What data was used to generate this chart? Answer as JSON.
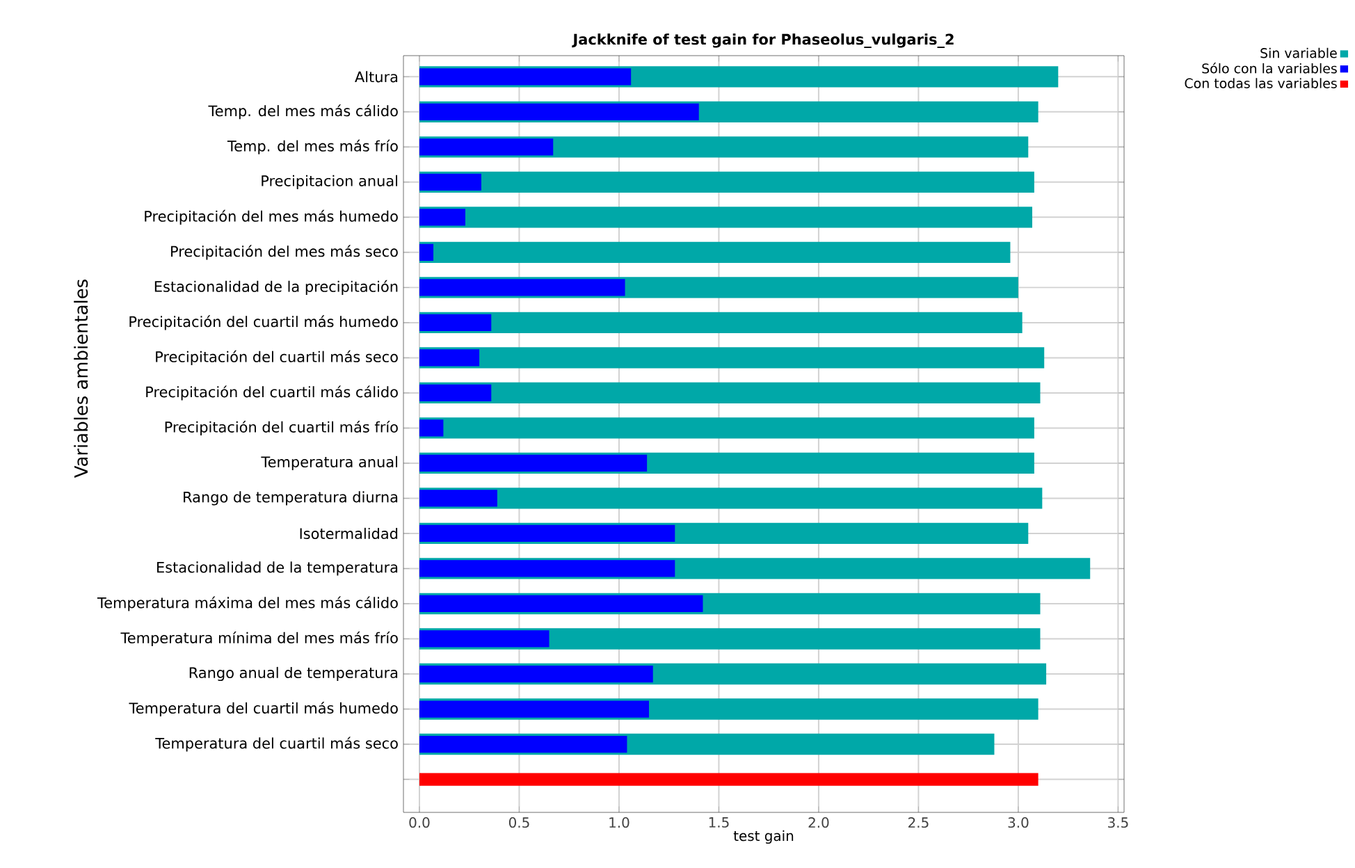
{
  "chart_data": {
    "type": "bar",
    "orientation": "horizontal",
    "title": "Jackknife of test gain for Phaseolus_vulgaris_2",
    "xlabel": "test gain",
    "ylabel": "Variables ambientales",
    "categories": [
      "Altura",
      "Temp. del mes más cálido",
      "Temp. del mes más frío",
      "Precipitacion anual",
      "Precipitación del mes más humedo",
      "Precipitación del mes más seco",
      "Estacionalidad de la precipitación",
      "Precipitación del cuartil más humedo",
      "Precipitación del cuartil más seco",
      "Precipitación del cuartil más cálido",
      "Precipitación del cuartil más frío",
      "Temperatura anual",
      "Rango de temperatura diurna",
      "Isotermalidad",
      "Estacionalidad de la temperatura",
      "Temperatura máxima del mes más cálido",
      "Temperatura mínima del mes más frío",
      "Rango anual de temperatura",
      "Temperatura del cuartil más humedo",
      "Temperatura del cuartil más seco",
      null
    ],
    "series": [
      {
        "name": "Sin variable",
        "color": "#00a8a8",
        "values": [
          3.2,
          3.1,
          3.05,
          3.08,
          3.07,
          2.96,
          3.0,
          3.02,
          3.13,
          3.11,
          3.08,
          3.08,
          3.12,
          3.05,
          3.36,
          3.11,
          3.11,
          3.14,
          3.1,
          2.88,
          null
        ]
      },
      {
        "name": "Sólo con la variables",
        "color": "#0000ff",
        "values": [
          1.06,
          1.4,
          0.67,
          0.31,
          0.23,
          0.07,
          1.03,
          0.36,
          0.3,
          0.36,
          0.12,
          1.14,
          0.39,
          1.28,
          1.28,
          1.42,
          0.65,
          1.17,
          1.15,
          1.04,
          null
        ]
      },
      {
        "name": "Con todas las variables",
        "color": "#ff0000",
        "values": [
          null,
          null,
          null,
          null,
          null,
          null,
          null,
          null,
          null,
          null,
          null,
          null,
          null,
          null,
          null,
          null,
          null,
          null,
          null,
          null,
          3.1
        ]
      }
    ],
    "xlim": [
      -0.08,
      3.53
    ],
    "xticks": [
      {
        "value": 0,
        "label": "0.0"
      },
      0.5,
      {
        "value": 1,
        "label": "1.0"
      },
      1.5,
      {
        "value": 2,
        "label": "2.0"
      },
      2.5,
      {
        "value": 3,
        "label": "3.0"
      },
      3.5
    ],
    "grid": true,
    "legend": "top right"
  }
}
